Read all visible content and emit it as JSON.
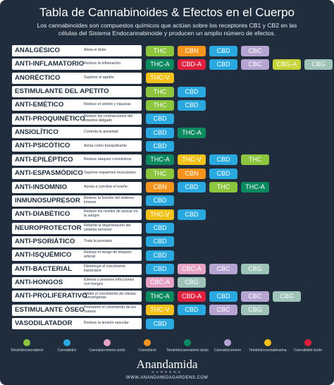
{
  "header": {
    "title": "Tabla de Cannabinoides & Efectos en el Cuerpo",
    "subtitle": "Los cannabinoides son compuestos químicos que actúan sobre los receptores CB1 y CB2 en las células del Sistema Endocannabinoide y producen un amplio número de efectos."
  },
  "palette": {
    "THC": "#8cc63f",
    "CBN": "#f7941d",
    "CBD": "#29a9e0",
    "CBC": "#b6a5d3",
    "THC-A": "#0b8a5f",
    "CBD-A": "#e0203f",
    "CBG-A": "#c6d43a",
    "CBG": "#9fc3b8",
    "THC-V": "#f2c21b",
    "CBC-A": "#e7a3c6"
  },
  "rows": [
    {
      "name": "ANALGÉSICO",
      "description": "Alivia el dolor",
      "tags": [
        "THC",
        "CBN",
        "CBD",
        "CBC"
      ]
    },
    {
      "name": "ANTI-INFLAMATORIO",
      "description": "Reduce la inflamación",
      "tags": [
        "THC-A",
        "CBD-A",
        "CBD",
        "CBC",
        "CBG-A",
        "CBG"
      ]
    },
    {
      "name": "ANORÉCTICO",
      "description": "Suprime el apetito",
      "tags": [
        "THC-V"
      ]
    },
    {
      "name": "ESTIMULANTE DEL APETITO",
      "tags": [
        "THC",
        "CBD"
      ]
    },
    {
      "name": "ANTI-EMÉTICO",
      "description": "Reduce el vómito y náuseas",
      "tags": [
        "THC",
        "CBD"
      ]
    },
    {
      "name": "ANTI-PROQUINÉTICO",
      "description": "Reduce las contracciones del intestino delgado",
      "tags": [
        "CBD"
      ]
    },
    {
      "name": "ANSIOLÍTICO",
      "description": "Controla la ansiedad",
      "tags": [
        "CBD",
        "THC-A"
      ]
    },
    {
      "name": "ANTI-PSICÓTICO",
      "description": "Actúa como tranquilizante",
      "tags": [
        "CBD"
      ]
    },
    {
      "name": "ANTI-EPILÉPTICO",
      "description": "Reduce ataques convulsivos",
      "tags": [
        "THC-A",
        "THC-V",
        "CBD",
        "THC"
      ]
    },
    {
      "name": "ANTI-ESPASMÓDICO",
      "description": "Suprime espasmos musculares",
      "tags": [
        "THC",
        "CBN",
        "CBD"
      ]
    },
    {
      "name": "ANTI-INSOMNIO",
      "description": "Ayuda a conciliar el sueño",
      "tags": [
        "CBN",
        "CBD",
        "THC",
        "THC-A"
      ]
    },
    {
      "name": "INMUNOSUPRESOR",
      "description": "Reduce la función del sistema inmune",
      "tags": [
        "CBD"
      ]
    },
    {
      "name": "ANTI-DIABÉTICO",
      "description": "Reduce los niveles de azúcar en la sangre",
      "tags": [
        "THC-V",
        "CBD"
      ]
    },
    {
      "name": "NEUROPROTECTOR",
      "description": "Retarda la degeneración del sistema nervioso",
      "tags": [
        "CBD"
      ]
    },
    {
      "name": "ANTI-PSORIÁTICO",
      "description": "Trata la psoriasis",
      "tags": [
        "CBD"
      ]
    },
    {
      "name": "ANTI-ISQUÉMICO",
      "description": "Reduce el riesgo de bloqueo arterial",
      "tags": [
        "CBD"
      ]
    },
    {
      "name": "ANTI-BACTERIAL",
      "description": "Disminuye el crecimiento bacteriano",
      "tags": [
        "CBD",
        "CBC-A",
        "CBC",
        "CBG"
      ]
    },
    {
      "name": "ANTI-HONGOS",
      "description": "Elimina y previene infecciones con hongos",
      "tags": [
        "CBC-A",
        "CBG"
      ]
    },
    {
      "name": "ANTI-PROLIFERATIVO",
      "description": "Inhibe el crecimiento de células cancerígenas",
      "tags": [
        "THC-A",
        "CBD-A",
        "CBD",
        "CBC",
        "CBG"
      ]
    },
    {
      "name": "ESTIMULANTE ÓSEO",
      "description": "Promueve el crecimiento de los huesos",
      "tags": [
        "THC-V",
        "CBD",
        "CBC",
        "CBG"
      ]
    },
    {
      "name": "VASODILATADOR",
      "description": "Reduce la tensión vascular",
      "tags": [
        "CBD"
      ]
    }
  ],
  "legend": [
    {
      "label": "Tetrahidrocannabinol",
      "color": "#8cc63f"
    },
    {
      "label": "Cannabidiol",
      "color": "#29a9e0"
    },
    {
      "label": "Cannabicromeno ácido",
      "color": "#e7a3c6"
    },
    {
      "label": "Cannabinol",
      "color": "#f7941d"
    },
    {
      "label": "Tetrahidrocannabinol ácido",
      "color": "#0b8a5f"
    },
    {
      "label": "Cannabicromeno",
      "color": "#b6a5d3"
    },
    {
      "label": "Tetrahidrocannabivarina",
      "color": "#f2c21b"
    },
    {
      "label": "Cannabidiol ácido",
      "color": "#e0203f"
    }
  ],
  "footer": {
    "brand": "Anandamida",
    "brand_sub": "GARDENS",
    "url": "WWW.ANANDAMIDAGARDENS.COM"
  }
}
